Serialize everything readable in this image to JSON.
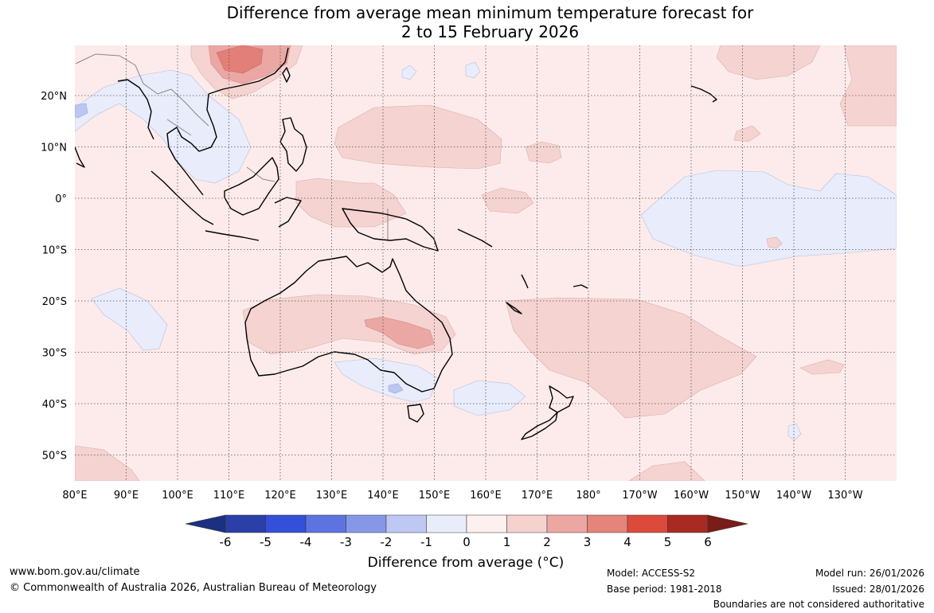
{
  "title": {
    "line1": "Difference from average mean minimum temperature forecast for",
    "line2": "2 to 15 February 2026"
  },
  "axes": {
    "lat_labels": [
      "20°N",
      "10°N",
      "0°",
      "10°S",
      "20°S",
      "30°S",
      "40°S",
      "50°S"
    ],
    "lon_labels": [
      "80°E",
      "90°E",
      "100°E",
      "110°E",
      "120°E",
      "130°E",
      "140°E",
      "150°E",
      "160°E",
      "170°E",
      "180°",
      "170°W",
      "160°W",
      "150°W",
      "140°W",
      "130°W"
    ]
  },
  "colorbar": {
    "ticks": [
      "-6",
      "-5",
      "-4",
      "-3",
      "-2",
      "-1",
      "0",
      "1",
      "2",
      "3",
      "4",
      "5",
      "6"
    ],
    "colors": [
      "#2a3fa8",
      "#3450d8",
      "#5c73e0",
      "#8797e8",
      "#bfc8f3",
      "#e9edfb",
      "#fdf0ef",
      "#f6d2cf",
      "#eda7a2",
      "#e58479",
      "#dc4a3c",
      "#a82a22"
    ],
    "under_color": "#1d2f80",
    "over_color": "#7a1c18",
    "label": "Difference from average (°C)"
  },
  "footer": {
    "website": "www.bom.gov.au/climate",
    "copyright": "© Commonwealth of Australia 2026, Australian Bureau of Meteorology",
    "model": "Model: ACCESS-S2",
    "base_period": "Base period: 1981-2018",
    "model_run": "Model run: 26/01/2026",
    "issued": "Issued: 28/01/2026",
    "disclaimer": "Boundaries are not considered authoritative"
  },
  "colors": {
    "background_anomaly": "#fcebea",
    "warm1": "#f5d3d0",
    "warm2": "#eaa7a3",
    "warm3": "#e27f78",
    "cool1": "#e8ecfb",
    "cool2": "#bcc6f2",
    "coast": "#000000",
    "border": "#888888",
    "grid": "#555555"
  }
}
